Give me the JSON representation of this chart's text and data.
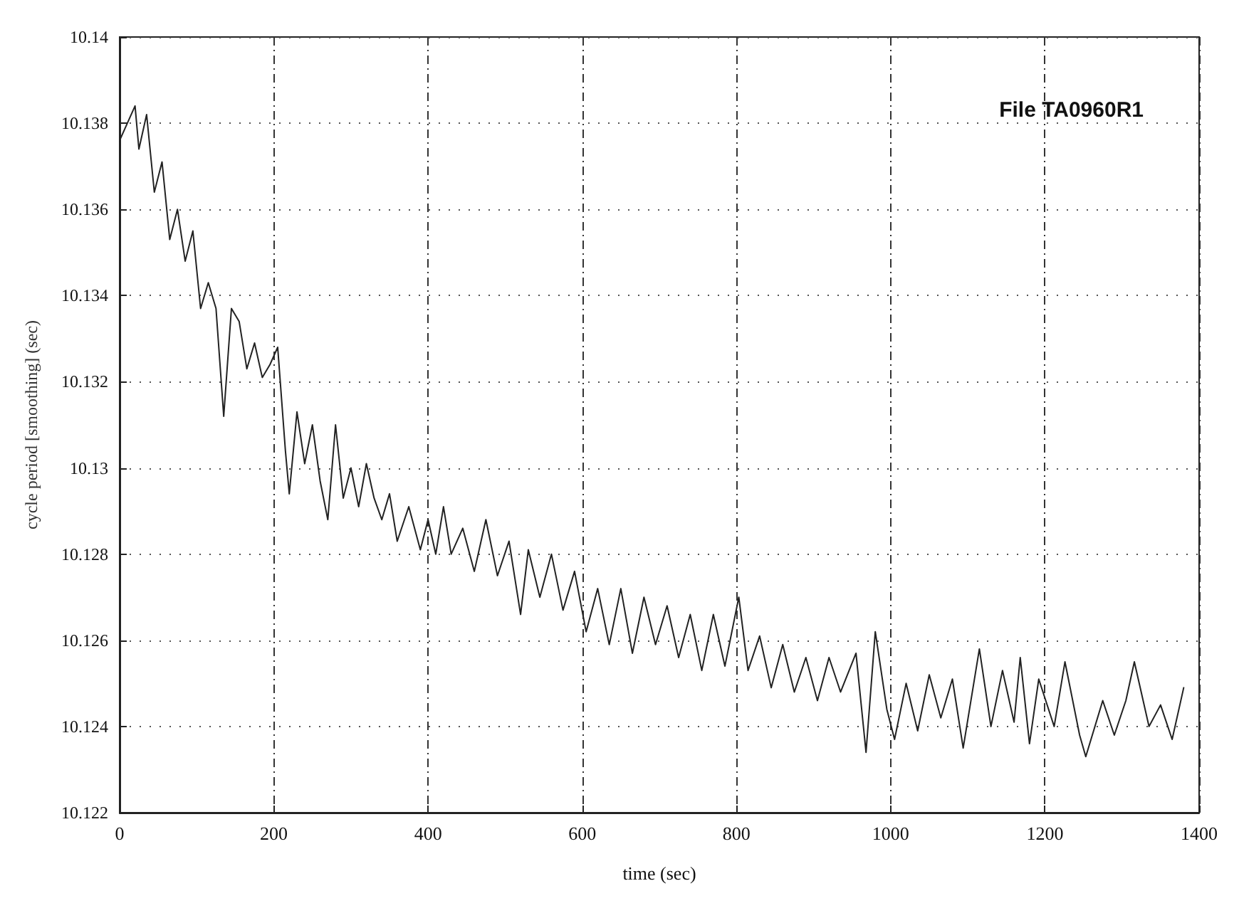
{
  "chart_data": {
    "type": "line",
    "xlabel": "time (sec)",
    "ylabel": "cycle period [smoothing] (sec)",
    "annotations": [
      "File TA0960R1"
    ],
    "xlim": [
      0,
      1400
    ],
    "xticks": [
      0,
      200,
      400,
      600,
      800,
      1000,
      1200,
      1400
    ],
    "ylim": [
      10.122,
      10.14
    ],
    "yticks": [
      10.122,
      10.124,
      10.126,
      10.128,
      10.13,
      10.132,
      10.134,
      10.136,
      10.138,
      10.14
    ],
    "grid": true,
    "marker": "none",
    "line_style": "solid",
    "series": [
      {
        "color": "#222222",
        "x": [
          0,
          10,
          20,
          25,
          35,
          45,
          55,
          65,
          75,
          85,
          95,
          105,
          115,
          125,
          135,
          145,
          155,
          165,
          175,
          185,
          195,
          205,
          215,
          220,
          230,
          240,
          250,
          260,
          270,
          280,
          290,
          300,
          310,
          320,
          330,
          340,
          350,
          360,
          375,
          390,
          400,
          410,
          420,
          430,
          445,
          460,
          475,
          490,
          505,
          520,
          530,
          545,
          560,
          575,
          590,
          605,
          620,
          635,
          650,
          665,
          680,
          695,
          710,
          725,
          740,
          755,
          770,
          785,
          803,
          815,
          830,
          845,
          860,
          875,
          890,
          905,
          920,
          935,
          955,
          968,
          980,
          995,
          1005,
          1020,
          1035,
          1050,
          1065,
          1080,
          1094,
          1115,
          1130,
          1145,
          1160,
          1168,
          1180,
          1192,
          1212,
          1226,
          1245,
          1253,
          1275,
          1290,
          1305,
          1316,
          1335,
          1350,
          1365,
          1380
        ],
        "values": [
          10.1376,
          10.138,
          10.1384,
          10.1374,
          10.1382,
          10.1364,
          10.1371,
          10.1353,
          10.136,
          10.1348,
          10.1355,
          10.1337,
          10.1343,
          10.1337,
          10.1312,
          10.1337,
          10.1334,
          10.1323,
          10.1329,
          10.1321,
          10.1324,
          10.1328,
          10.1304,
          10.1294,
          10.1313,
          10.1301,
          10.131,
          10.1297,
          10.1288,
          10.131,
          10.1293,
          10.13,
          10.1291,
          10.1301,
          10.1293,
          10.1288,
          10.1294,
          10.1283,
          10.1291,
          10.1281,
          10.1288,
          10.128,
          10.1291,
          10.128,
          10.1286,
          10.1276,
          10.1288,
          10.1275,
          10.1283,
          10.1266,
          10.1281,
          10.127,
          10.128,
          10.1267,
          10.1276,
          10.1262,
          10.1272,
          10.1259,
          10.1272,
          10.1257,
          10.127,
          10.1259,
          10.1268,
          10.1256,
          10.1266,
          10.1253,
          10.1266,
          10.1254,
          10.127,
          10.1253,
          10.1261,
          10.1249,
          10.1259,
          10.1248,
          10.1256,
          10.1246,
          10.1256,
          10.1248,
          10.1257,
          10.1234,
          10.1262,
          10.1244,
          10.1237,
          10.125,
          10.1239,
          10.1252,
          10.1242,
          10.1251,
          10.1235,
          10.1258,
          10.124,
          10.1253,
          10.1241,
          10.1256,
          10.1236,
          10.1251,
          10.124,
          10.1255,
          10.1238,
          10.1233,
          10.1246,
          10.1238,
          10.1246,
          10.1255,
          10.124,
          10.1245,
          10.1237,
          10.1249
        ]
      }
    ]
  }
}
